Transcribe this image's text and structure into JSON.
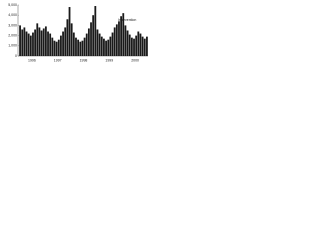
{
  "chart_data": {
    "type": "bar",
    "color": "#1a1a1a",
    "annotation": "Intervention",
    "categories": [
      "1996",
      null,
      null,
      null,
      null,
      null,
      null,
      null,
      null,
      null,
      null,
      null,
      "1997",
      null,
      null,
      null,
      null,
      null,
      null,
      null,
      null,
      null,
      null,
      null,
      "1998",
      null,
      null,
      null,
      null,
      null,
      null,
      null,
      null,
      null,
      null,
      null,
      "1999",
      null,
      null,
      null,
      null,
      null,
      null,
      null,
      null,
      null,
      null,
      null,
      "2000",
      null,
      null,
      null,
      null,
      null,
      null,
      null,
      null,
      null,
      null,
      null
    ],
    "values": [
      3000,
      2600,
      2800,
      2400,
      2200,
      2000,
      2300,
      2600,
      3200,
      2800,
      2500,
      2700,
      2900,
      2400,
      2200,
      1800,
      1500,
      1400,
      1600,
      2000,
      2400,
      2800,
      3600,
      4800,
      3200,
      2300,
      1800,
      1600,
      1400,
      1500,
      1800,
      2200,
      2700,
      3300,
      4000,
      4900,
      2600,
      2200,
      1900,
      1700,
      1500,
      1600,
      1900,
      2300,
      2800,
      3100,
      3400,
      3900,
      4200,
      3000,
      2500,
      2100,
      1800,
      1700,
      2000,
      2400,
      2200,
      1900,
      1700,
      1900
    ],
    "ylim": [
      0,
      5000
    ],
    "yticks": [
      0,
      {
        "value": 1000,
        "label": "1,000"
      },
      {
        "value": 2000,
        "label": "2,000"
      },
      {
        "value": 3000,
        "label": "3,000"
      },
      {
        "value": 4000,
        "label": "4,000"
      },
      {
        "value": 5000,
        "label": "5,000"
      }
    ]
  }
}
